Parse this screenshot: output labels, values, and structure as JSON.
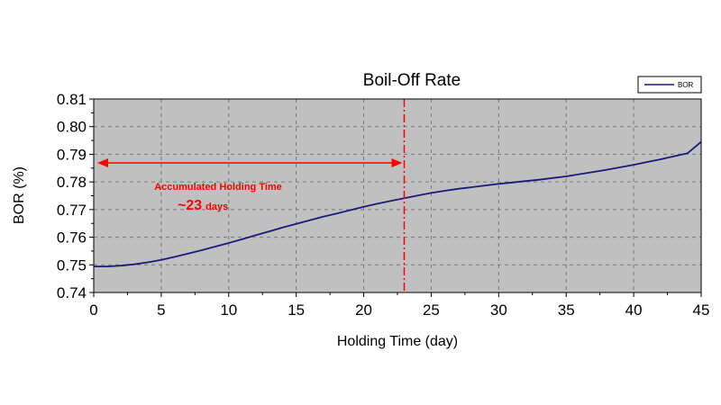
{
  "chart_data": {
    "type": "line",
    "title": "Boil-Off Rate",
    "xlabel": "Holding Time (day)",
    "ylabel": "BOR (%)",
    "xlim": [
      0,
      45
    ],
    "ylim": [
      0.74,
      0.81
    ],
    "xticks": [
      "0",
      "5",
      "10",
      "15",
      "20",
      "25",
      "30",
      "35",
      "40",
      "45"
    ],
    "yticks": [
      "0.74",
      "0.75",
      "0.76",
      "0.77",
      "0.78",
      "0.79",
      "0.80",
      "0.81"
    ],
    "grid": true,
    "legend_position": "top-right",
    "series": [
      {
        "name": "BOR",
        "x": [
          0,
          1,
          2,
          3,
          4,
          5,
          6,
          7,
          8,
          9,
          10,
          11,
          12,
          13,
          14,
          15,
          16,
          17,
          18,
          19,
          20,
          21,
          22,
          23,
          24,
          25,
          26,
          27,
          28,
          29,
          30,
          31,
          32,
          33,
          34,
          35,
          36,
          37,
          38,
          39,
          40,
          41,
          42,
          43,
          44,
          45
        ],
        "y": [
          0.7494,
          0.7494,
          0.7497,
          0.7502,
          0.7509,
          0.7518,
          0.7529,
          0.7541,
          0.7553,
          0.7566,
          0.7579,
          0.7593,
          0.7607,
          0.7621,
          0.7635,
          0.7648,
          0.7661,
          0.7674,
          0.7686,
          0.7698,
          0.771,
          0.7721,
          0.7731,
          0.7741,
          0.7751,
          0.776,
          0.7768,
          0.7775,
          0.7781,
          0.7787,
          0.7793,
          0.7798,
          0.7803,
          0.7808,
          0.7814,
          0.782,
          0.7828,
          0.7836,
          0.7844,
          0.7853,
          0.7862,
          0.7872,
          0.7882,
          0.7893,
          0.7904,
          0.7945
        ]
      }
    ],
    "annotations": {
      "marker_x": 23,
      "label_line1": "Accumulated Holding Time",
      "label_big": "~23",
      "label_small": "days"
    },
    "colors": {
      "plot_background": "#c0c0c0",
      "series_line": "#1a1a7a",
      "annotation": "#ff0000",
      "grid": "#7a7a7a"
    }
  }
}
